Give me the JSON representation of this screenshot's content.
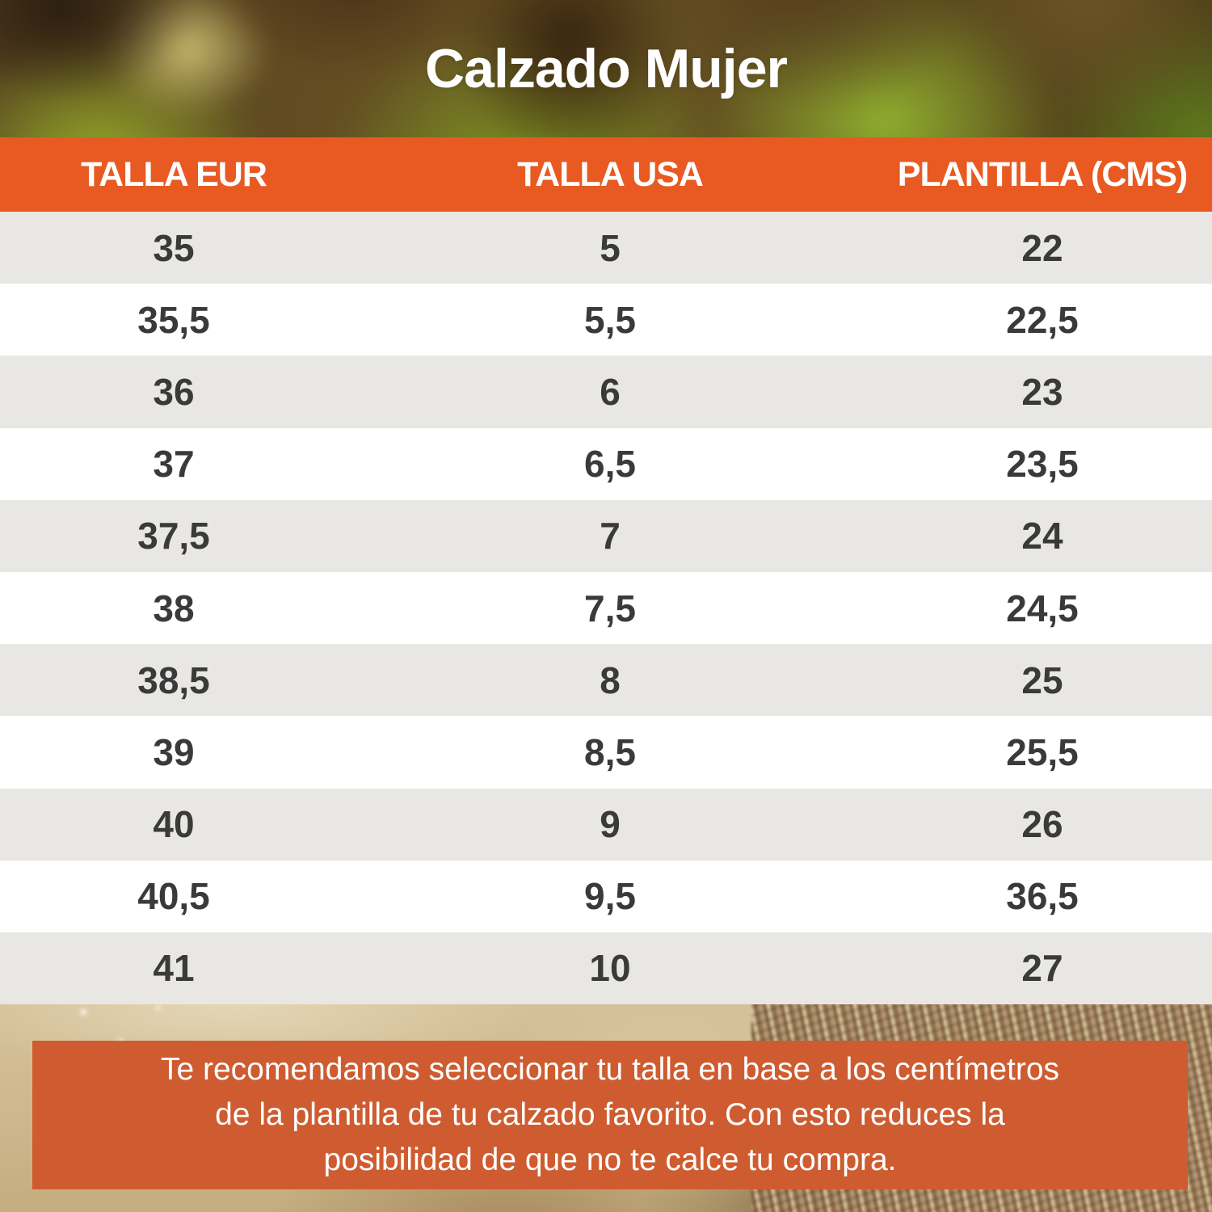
{
  "chart_data": {
    "type": "table",
    "title": "Calzado Mujer",
    "columns": [
      "TALLA EUR",
      "TALLA USA",
      "PLANTILLA (CMS)"
    ],
    "rows": [
      [
        "35",
        "5",
        "22"
      ],
      [
        "35,5",
        "5,5",
        "22,5"
      ],
      [
        "36",
        "6",
        "23"
      ],
      [
        "37",
        "6,5",
        "23,5"
      ],
      [
        "37,5",
        "7",
        "24"
      ],
      [
        "38",
        "7,5",
        "24,5"
      ],
      [
        "38,5",
        "8",
        "25"
      ],
      [
        "39",
        "8,5",
        "25,5"
      ],
      [
        "40",
        "9",
        "26"
      ],
      [
        "40,5",
        "9,5",
        "36,5"
      ],
      [
        "41",
        "10",
        "27"
      ]
    ],
    "note_lines": [
      "Te recomendamos seleccionar tu talla en base a los centímetros",
      "de la plantilla de tu calzado favorito. Con esto reduces la",
      "posibilidad de que no te calce tu compra."
    ]
  },
  "colors": {
    "accent": "#E85A22",
    "note-bg": "#CE5C30",
    "row-alt": "#E8E7E4",
    "row-text": "#3A3A3A",
    "title-text": "#FFFFFF"
  }
}
